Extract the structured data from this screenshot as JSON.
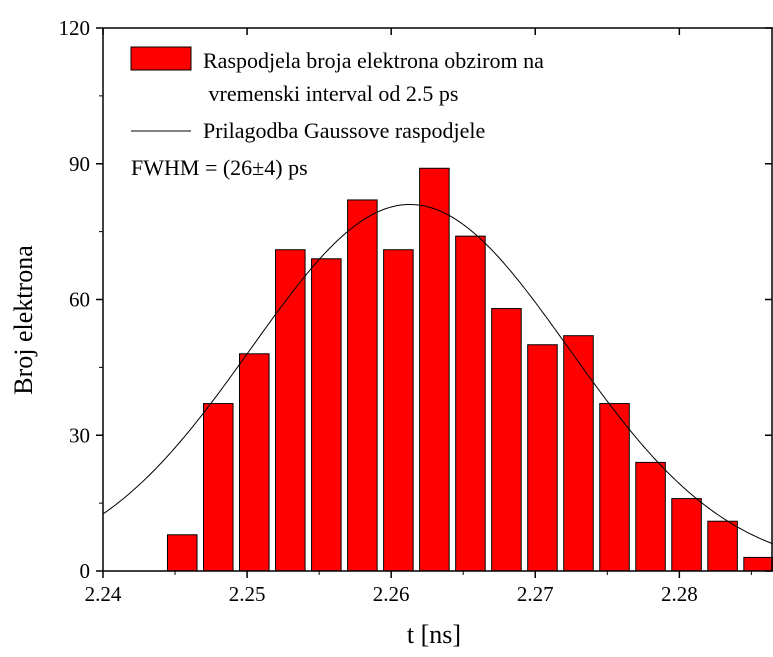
{
  "chart_data": {
    "type": "bar",
    "xlabel": "t [ns]",
    "ylabel": "Broj elektrona",
    "xlim": [
      2.24,
      2.2865
    ],
    "ylim": [
      0,
      120
    ],
    "xticks": [
      2.24,
      2.25,
      2.26,
      2.27,
      2.28
    ],
    "xtick_labels": [
      "2.24",
      "2.25",
      "2.26",
      "2.27",
      "2.28"
    ],
    "yticks": [
      0,
      30,
      60,
      90,
      120
    ],
    "ytick_labels": [
      "0",
      "30",
      "60",
      "90",
      "120"
    ],
    "bin_width_ns": 0.0025,
    "bins": {
      "x": [
        2.2455,
        2.248,
        2.2505,
        2.253,
        2.2555,
        2.258,
        2.2605,
        2.263,
        2.2655,
        2.268,
        2.2705,
        2.273,
        2.2755,
        2.278,
        2.2805,
        2.283,
        2.2855
      ],
      "values": [
        8,
        37,
        48,
        71,
        69,
        82,
        71,
        89,
        74,
        58,
        50,
        52,
        37,
        24,
        16,
        11,
        3
      ]
    },
    "fit": {
      "type": "gaussian",
      "center": 2.2613,
      "amplitude": 81,
      "fwhm_ns": 0.026
    },
    "legend": {
      "position": "top-left",
      "entries": [
        {
          "kind": "bar",
          "line1": "Raspodjela broja elektrona obzirom na",
          "line2": " vremenski interval od 2.5 ps"
        },
        {
          "kind": "line",
          "line1": "Prilagodba Gaussove raspodjele"
        }
      ],
      "note": "FWHM = (26±4) ps"
    },
    "colors": {
      "bar_fill": "#ff0000",
      "bar_edge": "#000000",
      "fit_line": "#000000",
      "axes": "#000000"
    },
    "grid": false
  }
}
